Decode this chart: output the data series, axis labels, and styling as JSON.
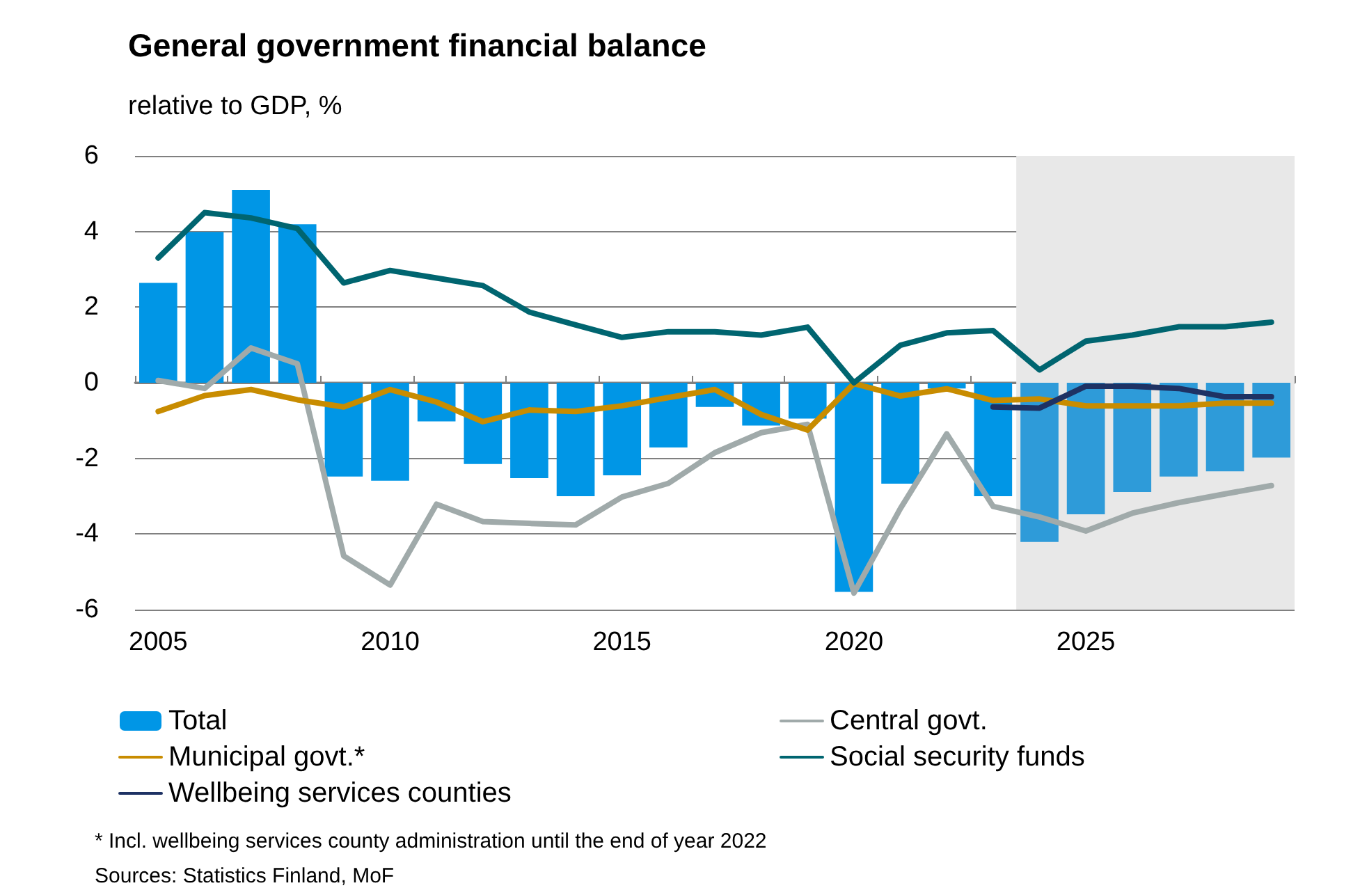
{
  "chart_data": {
    "type": "bar",
    "title": "General government financial balance",
    "subtitle": "relative to GDP, %",
    "categories": [
      "2005",
      null,
      null,
      null,
      null,
      "2010",
      null,
      null,
      null,
      null,
      "2015",
      null,
      null,
      null,
      null,
      "2020",
      null,
      null,
      null,
      null,
      "2025",
      null,
      null,
      null,
      null
    ],
    "series": [
      {
        "name": "Total",
        "color": "#0096e6",
        "colors": [
          "#0096e6",
          "#0096e6",
          "#0096e6",
          "#0096e6",
          "#0096e6",
          "#0096e6",
          "#0096e6",
          "#0096e6",
          "#0096e6",
          "#0096e6",
          "#0096e6",
          "#0096e6",
          "#0096e6",
          "#0096e6",
          "#0096e6",
          "#0096e6",
          "#0096e6",
          "#0096e6",
          "#0096e6",
          "#2e9bd9",
          "#2e9bd9",
          "#2e9bd9",
          "#2e9bd9",
          "#2e9bd9",
          "#2e9bd9"
        ],
        "values": [
          2.64,
          3.99,
          5.1,
          4.19,
          -2.48,
          -2.59,
          -1.02,
          -2.15,
          -2.52,
          -3.0,
          -2.45,
          -1.71,
          -0.64,
          -1.13,
          -0.95,
          -5.53,
          -2.67,
          -0.15,
          -3.0,
          -4.21,
          -3.48,
          -2.89,
          -2.48,
          -2.34,
          -1.98
        ]
      },
      {
        "name": "Central govt.",
        "type": "line",
        "color": "#a0aaaa",
        "values": [
          0.06,
          -0.15,
          0.92,
          0.5,
          -4.58,
          -5.35,
          -3.21,
          -3.67,
          -3.72,
          -3.76,
          -3.02,
          -2.66,
          -1.85,
          -1.32,
          -1.1,
          -5.56,
          -3.33,
          -1.35,
          -3.27,
          -3.55,
          -3.92,
          -3.45,
          -3.17,
          -2.94,
          -2.72
        ]
      },
      {
        "name": "Municipal govt.*",
        "type": "line",
        "color": "#c88c00",
        "values": [
          -0.76,
          -0.34,
          -0.18,
          -0.45,
          -0.64,
          -0.18,
          -0.51,
          -1.03,
          -0.72,
          -0.76,
          -0.61,
          -0.39,
          -0.18,
          -0.84,
          -1.25,
          -0.02,
          -0.35,
          -0.16,
          -0.47,
          -0.43,
          -0.61,
          -0.61,
          -0.61,
          -0.54,
          -0.54
        ]
      },
      {
        "name": "Social security funds",
        "type": "line",
        "color": "#006570",
        "values": [
          3.3,
          4.5,
          4.36,
          4.08,
          2.64,
          2.97,
          2.77,
          2.57,
          1.87,
          1.53,
          1.2,
          1.35,
          1.35,
          1.26,
          1.47,
          0.0,
          0.99,
          1.32,
          1.38,
          0.34,
          1.1,
          1.26,
          1.48,
          1.48,
          1.6
        ]
      },
      {
        "name": "Wellbeing services counties",
        "type": "line",
        "color": "#1e3264",
        "values": [
          null,
          null,
          null,
          null,
          null,
          null,
          null,
          null,
          null,
          null,
          null,
          null,
          null,
          null,
          null,
          null,
          null,
          null,
          -0.64,
          -0.67,
          -0.09,
          -0.09,
          -0.15,
          -0.37,
          -0.37
        ]
      }
    ],
    "ylim": [
      -6,
      6
    ],
    "yticks": [
      -6,
      -4,
      -2,
      0,
      2,
      4,
      6
    ],
    "grid": "y",
    "legend": "bottom",
    "marker": "none",
    "line_style": "solid",
    "annotations": [
      "* Incl. wellbeing services county administration until the end of year 2022",
      "Sources: Statistics Finland, MoF"
    ]
  }
}
